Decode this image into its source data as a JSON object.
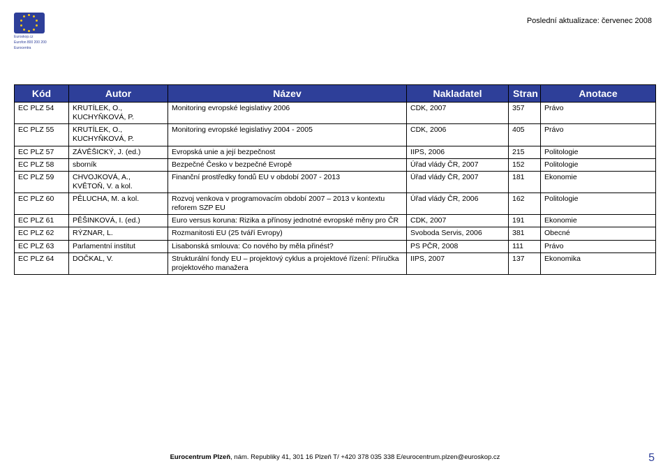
{
  "header": {
    "update_text": "Poslední aktualizace: červenec 2008",
    "logo_lines": [
      "Euroskop.cz",
      "Eurofon 800 200 200",
      "Eurocentra"
    ]
  },
  "table": {
    "columns": [
      "Kód",
      "Autor",
      "Název",
      "Nakladatel",
      "Stran",
      "Anotace"
    ],
    "rows": [
      [
        "EC PLZ 54",
        "KRUTÍLEK, O., KUCHYŇKOVÁ, P.",
        "Monitoring evropské legislativy 2006",
        "CDK, 2007",
        "357",
        "Právo"
      ],
      [
        "EC PLZ 55",
        "KRUTÍLEK, O., KUCHYŇKOVÁ, P.",
        "Monitoring evropské legislativy 2004 - 2005",
        "CDK, 2006",
        "405",
        "Právo"
      ],
      [
        "EC PLZ 57",
        "ZÁVĚŠICKÝ, J. (ed.)",
        "Evropská unie a její bezpečnost",
        "IIPS, 2006",
        "215",
        "Politologie"
      ],
      [
        "EC PLZ 58",
        "sborník",
        "Bezpečné Česko v bezpečné Evropě",
        "Úřad vlády ČR, 2007",
        "152",
        "Politologie"
      ],
      [
        "EC PLZ 59",
        "CHVOJKOVÁ, A., KVĚTOŇ, V. a kol.",
        "Finanční prostředky fondů EU v období 2007 - 2013",
        "Úřad vlády ČR, 2007",
        "181",
        "Ekonomie"
      ],
      [
        "EC PLZ 60",
        "PĚLUCHA, M. a kol.",
        "Rozvoj venkova v programovacím období 2007 – 2013 v kontextu reforem SZP EU",
        "Úřad vlády ČR, 2006",
        "162",
        "Politologie"
      ],
      [
        "EC PLZ 61",
        "PĚŠINKOVÁ, I. (ed.)",
        "Euro versus koruna: Rizika a přínosy jednotné evropské měny pro ČR",
        "CDK, 2007",
        "191",
        "Ekonomie"
      ],
      [
        "EC PLZ 62",
        "RÝZNAR, L.",
        "Rozmanitosti EU (25 tváří Evropy)",
        "Svoboda Servis, 2006",
        "381",
        "Obecné"
      ],
      [
        "EC PLZ 63",
        "Parlamentní institut",
        "Lisabonská smlouva: Co nového by měla přinést?",
        "PS PČR, 2008",
        "111",
        "Právo"
      ],
      [
        "EC PLZ 64",
        "DOČKAL, V.",
        "Strukturální fondy EU – projektový cyklus a projektové řízení: Příručka projektového manažera",
        "IIPS, 2007",
        "137",
        "Ekonomika"
      ]
    ]
  },
  "footer": {
    "text": "Eurocentrum Plzeň, nám. Republiky 41, 301 16 Plzeň T/ +420 378 035 338 E/eurocentrum.plzen@euroskop.cz",
    "page": "5"
  },
  "style": {
    "header_bg": "#2e3f99",
    "header_fg": "#ffffff",
    "border_color": "#000000",
    "body_font_size": 10.5,
    "header_font_size": 14
  }
}
